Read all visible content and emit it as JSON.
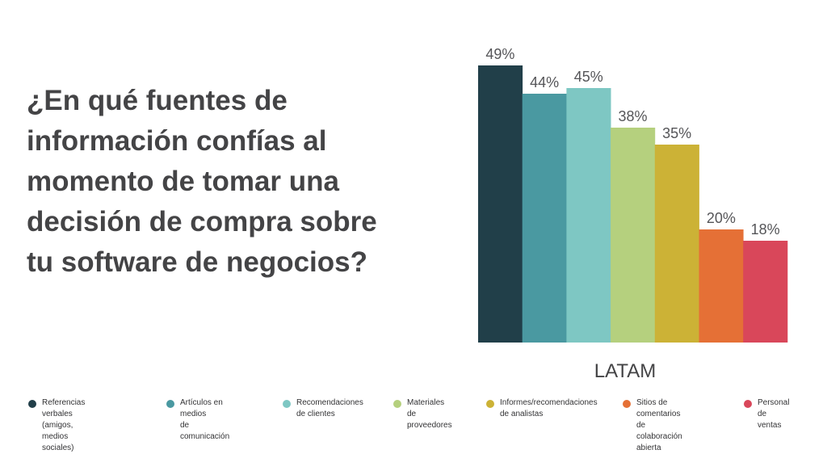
{
  "chart_data": {
    "type": "bar",
    "title": "¿En qué fuentes de\ninformación confías al\nmomento de tomar una\ndecisión de compra sobre\ntu software de negocios?",
    "categories": [
      "LATAM"
    ],
    "series": [
      {
        "name": "Referencias verbales\n(amigos, medios sociales)",
        "values": [
          49
        ],
        "color": "#213f49"
      },
      {
        "name": "Artículos en medios\nde comunicación",
        "values": [
          44
        ],
        "color": "#4a99a1"
      },
      {
        "name": "Recomendaciones\nde clientes",
        "values": [
          45
        ],
        "color": "#7ec7c3"
      },
      {
        "name": "Materiales de\nproveedores",
        "values": [
          38
        ],
        "color": "#b5d07e"
      },
      {
        "name": "Informes/recomendaciones\nde analistas",
        "values": [
          35
        ],
        "color": "#ccb236"
      },
      {
        "name": "Sitios de comentarios\nde colaboración abierta",
        "values": [
          20
        ],
        "color": "#e57036"
      },
      {
        "name": "Personal\nde ventas",
        "values": [
          18
        ],
        "color": "#d9475a"
      }
    ],
    "value_suffix": "%",
    "ylim": [
      0,
      50
    ],
    "grid": false,
    "legend_position": "bottom"
  }
}
